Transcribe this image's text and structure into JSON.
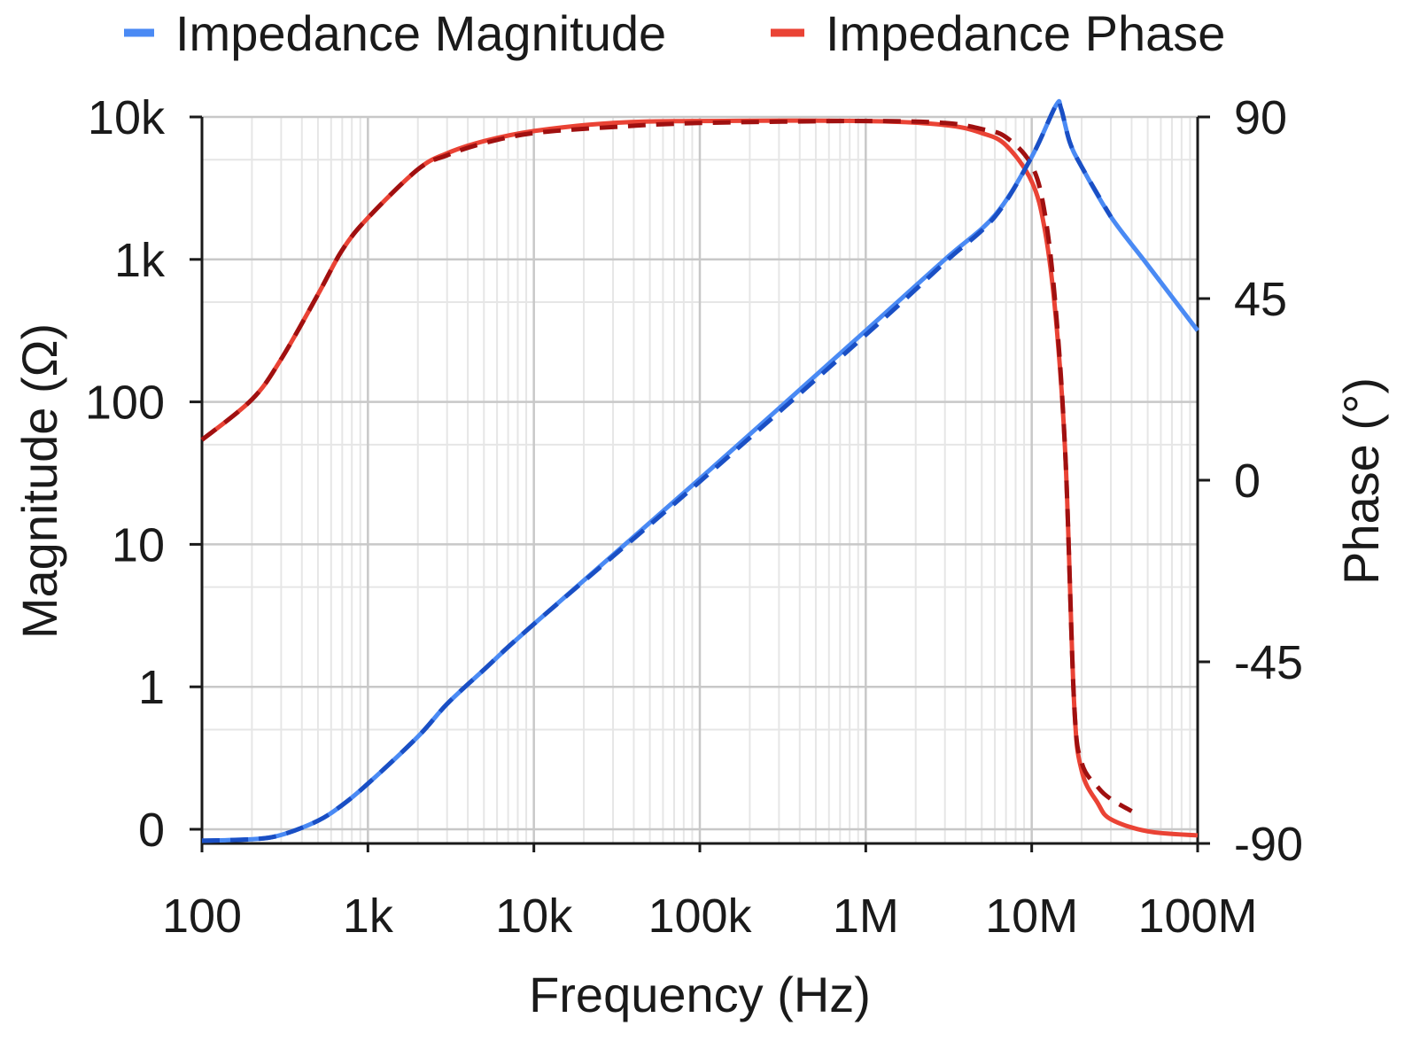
{
  "chart_data": {
    "type": "line",
    "xlabel": "Frequency (Hz)",
    "ylabel_left": "Magnitude (Ω)",
    "ylabel_right": "Phase (°)",
    "x_scale": "log",
    "x_range": [
      100,
      100000000
    ],
    "x_ticks": [
      {
        "value": 100,
        "label": "100"
      },
      {
        "value": 1000,
        "label": "1k"
      },
      {
        "value": 10000,
        "label": "10k"
      },
      {
        "value": 100000,
        "label": "100k"
      },
      {
        "value": 1000000,
        "label": "1M"
      },
      {
        "value": 10000000,
        "label": "10M"
      },
      {
        "value": 100000000,
        "label": "100M"
      }
    ],
    "y_left_ticks": [
      {
        "level": 0,
        "label": "0"
      },
      {
        "level": 1,
        "label": "1"
      },
      {
        "level": 2,
        "label": "10"
      },
      {
        "level": 3,
        "label": "100"
      },
      {
        "level": 4,
        "label": "1k"
      },
      {
        "level": 5,
        "label": "10k"
      }
    ],
    "y_left_range": [
      0,
      5
    ],
    "y_right_scale": "linear",
    "y_right_range": [
      -90,
      90
    ],
    "y_right_ticks": [
      {
        "value": 90,
        "label": "90"
      },
      {
        "value": 45,
        "label": "45"
      },
      {
        "value": 0,
        "label": "0"
      },
      {
        "value": -45,
        "label": "-45"
      },
      {
        "value": -90,
        "label": "-90"
      }
    ],
    "grid": true,
    "legend": {
      "position": "top",
      "entries": [
        "Impedance Magnitude",
        "Impedance Phase"
      ]
    },
    "colors": {
      "magnitude": "#4a8af4",
      "magnitude_dashed": "#1a4fc4",
      "phase": "#ea4335",
      "phase_dashed": "#a01010",
      "grid_major": "#c8c8c8",
      "grid_minor": "#e6e6e6",
      "axis": "#1a1a1a"
    },
    "series": [
      {
        "axis": "left",
        "style": "solid",
        "x": [
          100,
          200,
          300,
          500,
          700,
          1000,
          2000,
          3000,
          5000,
          10000,
          100000,
          1000000,
          3000000,
          6000000,
          10000000,
          14000000,
          15000000,
          17000000,
          20000000,
          30000000,
          50000000,
          100000000
        ],
        "y_level": [
          -0.08,
          -0.07,
          -0.04,
          0.06,
          0.17,
          0.32,
          0.65,
          0.88,
          1.12,
          1.44,
          2.46,
          3.5,
          4.0,
          4.31,
          4.72,
          5.08,
          5.06,
          4.82,
          4.65,
          4.3,
          3.96,
          3.5
        ]
      },
      {
        "axis": "left",
        "style": "dashed",
        "x": [
          100,
          200,
          300,
          500,
          700,
          1000,
          2000,
          3000,
          5000,
          10000,
          100000,
          1000000,
          3000000,
          6000000,
          10000000,
          14000000,
          15000000,
          17000000,
          20000000,
          30000000
        ],
        "y_level": [
          -0.08,
          -0.07,
          -0.04,
          0.06,
          0.17,
          0.32,
          0.65,
          0.88,
          1.12,
          1.44,
          2.44,
          3.47,
          3.98,
          4.3,
          4.72,
          5.08,
          5.06,
          4.82,
          4.65,
          4.3
        ]
      },
      {
        "axis": "right",
        "style": "solid",
        "x": [
          100,
          200,
          300,
          500,
          700,
          1000,
          2000,
          3000,
          5000,
          10000,
          30000,
          100000,
          1000000,
          3000000,
          5000000,
          7000000,
          10000000,
          12000000,
          14000000,
          16000000,
          18000000,
          20000000,
          25000000,
          30000000,
          50000000,
          100000000
        ],
        "y": [
          10,
          20,
          30,
          46,
          57,
          65,
          77,
          81,
          84,
          86.5,
          88.5,
          89,
          89,
          88,
          86,
          83,
          74,
          62,
          40,
          5,
          -55,
          -72,
          -80,
          -84,
          -87,
          -88
        ]
      },
      {
        "axis": "right",
        "style": "dashed",
        "x": [
          100,
          200,
          300,
          500,
          700,
          1000,
          2000,
          3000,
          5000,
          10000,
          30000,
          100000,
          1000000,
          3000000,
          5000000,
          7000000,
          10000000,
          12000000,
          14000000,
          16000000,
          18000000,
          20000000,
          25000000,
          30000000,
          40000000
        ],
        "y": [
          10,
          20,
          30,
          46,
          57,
          65,
          77,
          80.5,
          83.5,
          86,
          87.5,
          88.5,
          89,
          88.5,
          87,
          85,
          78,
          66,
          42,
          5,
          -55,
          -70,
          -76,
          -79,
          -82
        ]
      }
    ]
  }
}
